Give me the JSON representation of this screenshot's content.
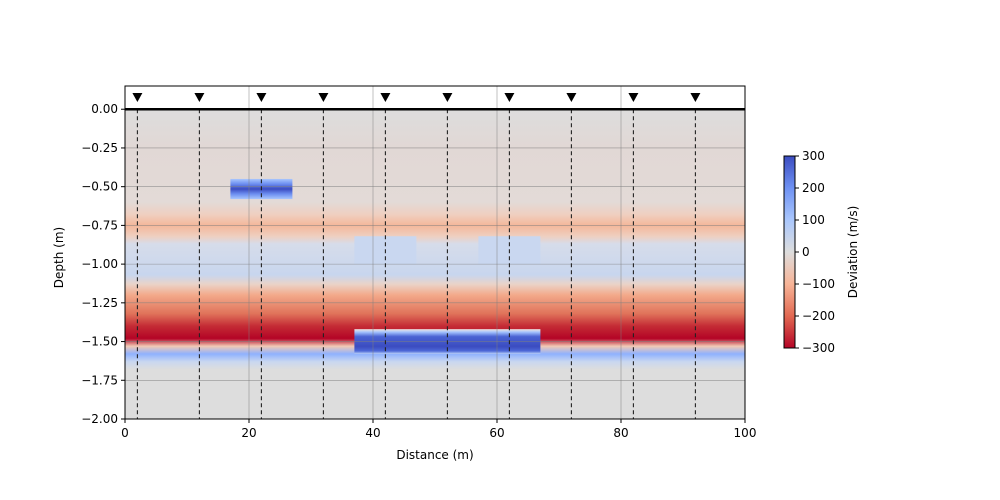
{
  "chart_data": {
    "type": "heatmap",
    "title": "",
    "xlabel": "Distance (m)",
    "ylabel": "Depth (m)",
    "xlim": [
      0,
      100
    ],
    "ylim": [
      -2.0,
      0.15
    ],
    "xticks": [
      0,
      20,
      40,
      60,
      80,
      100
    ],
    "xtick_labels": [
      "0",
      "20",
      "40",
      "60",
      "80",
      "100"
    ],
    "yticks": [
      0.0,
      -0.25,
      -0.5,
      -0.75,
      -1.0,
      -1.25,
      -1.5,
      -1.75,
      -2.0
    ],
    "ytick_labels": [
      "0.00",
      "−0.25",
      "−0.50",
      "−0.75",
      "−1.00",
      "−1.25",
      "−1.50",
      "−1.75",
      "−2.00"
    ],
    "grid": true,
    "colormap": "coolwarm_r",
    "colorbar": {
      "label": "Deviation (m/s)",
      "range": [
        -300,
        300
      ],
      "ticks": [
        300,
        200,
        100,
        0,
        -100,
        -200,
        -300
      ],
      "tick_labels": [
        "300",
        "200",
        "100",
        "0",
        "−100",
        "−200",
        "−300"
      ]
    },
    "ground_surface_depth": 0.0,
    "receivers": {
      "x": [
        2,
        12,
        22,
        32,
        42,
        52,
        62,
        72,
        82,
        92
      ],
      "marker": "down-triangle",
      "line_style": "dashed"
    },
    "background_layers": [
      {
        "depth_top": 0.0,
        "depth_bottom": -0.82,
        "deviation": -10
      },
      {
        "depth_top": -0.82,
        "depth_bottom": -1.0,
        "deviation": -90,
        "profile": "peak"
      },
      {
        "depth_top": -1.0,
        "depth_bottom": -1.2,
        "deviation": 40
      },
      {
        "depth_top": -1.2,
        "depth_bottom": -1.55,
        "deviation": -300,
        "profile": "ramp"
      },
      {
        "depth_top": -1.55,
        "depth_bottom": -1.63,
        "deviation": 150,
        "profile": "peak"
      },
      {
        "depth_top": -1.63,
        "depth_bottom": -2.0,
        "deviation": 0
      }
    ],
    "anomalies": [
      {
        "x_range": [
          17,
          27
        ],
        "depth_range": [
          -0.45,
          -0.58
        ],
        "deviation": 300
      },
      {
        "x_range": [
          37,
          42
        ],
        "depth_range": [
          -0.82,
          -1.0
        ],
        "deviation": 30
      },
      {
        "x_range": [
          42,
          47
        ],
        "depth_range": [
          -0.82,
          -1.0
        ],
        "deviation": 30
      },
      {
        "x_range": [
          57,
          62
        ],
        "depth_range": [
          -0.82,
          -1.0
        ],
        "deviation": 30
      },
      {
        "x_range": [
          62,
          67
        ],
        "depth_range": [
          -0.82,
          -1.0
        ],
        "deviation": 30
      },
      {
        "x_range": [
          37,
          67
        ],
        "depth_range": [
          -1.42,
          -1.58
        ],
        "deviation": 300
      }
    ]
  }
}
